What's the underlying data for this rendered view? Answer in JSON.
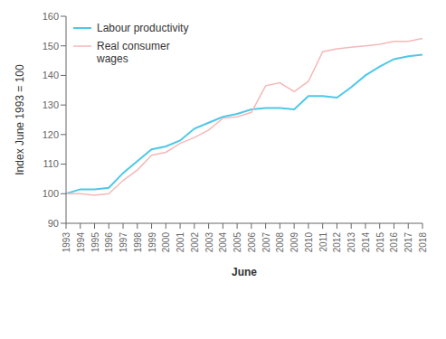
{
  "chart_data": {
    "type": "line",
    "xlabel": "June",
    "ylabel": "Index June 1993 = 100",
    "x": [
      1993,
      1994,
      1995,
      1996,
      1997,
      1998,
      1999,
      2000,
      2001,
      2002,
      2003,
      2004,
      2005,
      2006,
      2007,
      2008,
      2009,
      2010,
      2011,
      2012,
      2013,
      2014,
      2015,
      2016,
      2017,
      2018
    ],
    "xlim": [
      1993,
      2018
    ],
    "xticks": [
      1993,
      1994,
      1995,
      1996,
      1997,
      1998,
      1999,
      2000,
      2001,
      2002,
      2003,
      2004,
      2005,
      2006,
      2007,
      2008,
      2009,
      2010,
      2011,
      2012,
      2013,
      2014,
      2015,
      2016,
      2017,
      2018
    ],
    "ylim": [
      90,
      160
    ],
    "yticks": [
      90,
      100,
      110,
      120,
      130,
      140,
      150,
      160
    ],
    "grid": false,
    "legend": "upper left",
    "series": [
      {
        "name": "Labour productivity",
        "color": "#4DC8E8",
        "values": [
          100.0,
          101.5,
          101.5,
          102.0,
          107.0,
          111.0,
          115.0,
          116.0,
          118.0,
          122.0,
          124.0,
          126.0,
          127.0,
          128.5,
          129.0,
          129.0,
          128.5,
          133.0,
          133.0,
          132.5,
          136.0,
          140.0,
          143.0,
          145.5,
          146.5,
          147.0
        ]
      },
      {
        "name": "Real consumer\nwages",
        "color": "#F5B8B8",
        "values": [
          100.0,
          100.0,
          99.5,
          100.0,
          104.5,
          108.0,
          113.0,
          114.0,
          117.0,
          119.0,
          121.5,
          125.5,
          126.0,
          127.5,
          136.5,
          137.5,
          134.5,
          138.0,
          148.0,
          149.0,
          149.5,
          150.0,
          150.5,
          151.5,
          151.5,
          152.5
        ]
      }
    ]
  }
}
